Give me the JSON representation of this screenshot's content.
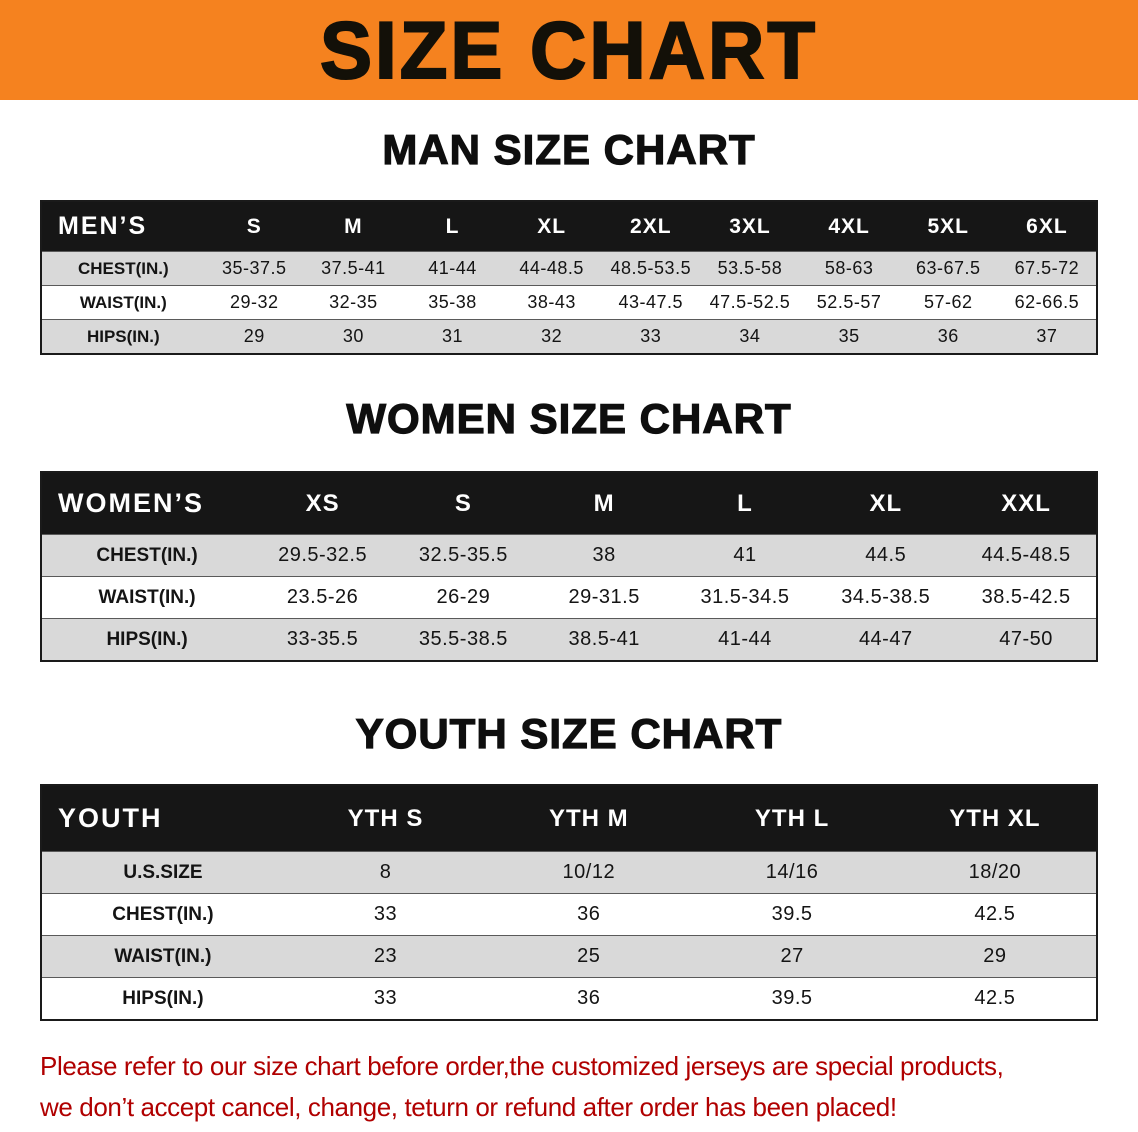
{
  "banner": {
    "title": "SIZE CHART"
  },
  "sections": [
    {
      "heading": "MAN SIZE CHART",
      "table": {
        "header": [
          "MEN’S",
          "S",
          "M",
          "L",
          "XL",
          "2XL",
          "3XL",
          "4XL",
          "5XL",
          "6XL"
        ],
        "rows": [
          {
            "label": "CHEST(IN.)",
            "values": [
              "35-37.5",
              "37.5-41",
              "41-44",
              "44-48.5",
              "48.5-53.5",
              "53.5-58",
              "58-63",
              "63-67.5",
              "67.5-72"
            ]
          },
          {
            "label": "WAIST(IN.)",
            "values": [
              "29-32",
              "32-35",
              "35-38",
              "38-43",
              "43-47.5",
              "47.5-52.5",
              "52.5-57",
              "57-62",
              "62-66.5"
            ]
          },
          {
            "label": "HIPS(IN.)",
            "values": [
              "29",
              "30",
              "31",
              "32",
              "33",
              "34",
              "35",
              "36",
              "37"
            ]
          }
        ]
      }
    },
    {
      "heading": "WOMEN SIZE CHART",
      "table": {
        "header": [
          "WOMEN’S",
          "XS",
          "S",
          "M",
          "L",
          "XL",
          "XXL"
        ],
        "rows": [
          {
            "label": "CHEST(IN.)",
            "values": [
              "29.5-32.5",
              "32.5-35.5",
              "38",
              "41",
              "44.5",
              "44.5-48.5"
            ]
          },
          {
            "label": "WAIST(IN.)",
            "values": [
              "23.5-26",
              "26-29",
              "29-31.5",
              "31.5-34.5",
              "34.5-38.5",
              "38.5-42.5"
            ]
          },
          {
            "label": "HIPS(IN.)",
            "values": [
              "33-35.5",
              "35.5-38.5",
              "38.5-41",
              "41-44",
              "44-47",
              "47-50"
            ]
          }
        ]
      }
    },
    {
      "heading": "YOUTH SIZE CHART",
      "table": {
        "header": [
          "YOUTH",
          "YTH S",
          "YTH M",
          "YTH L",
          "YTH XL"
        ],
        "rows": [
          {
            "label": "U.S.SIZE",
            "values": [
              "8",
              "10/12",
              "14/16",
              "18/20"
            ]
          },
          {
            "label": "CHEST(IN.)",
            "values": [
              "33",
              "36",
              "39.5",
              "42.5"
            ]
          },
          {
            "label": "WAIST(IN.)",
            "values": [
              "23",
              "25",
              "27",
              "29"
            ]
          },
          {
            "label": "HIPS(IN.)",
            "values": [
              "33",
              "36",
              "39.5",
              "42.5"
            ]
          }
        ]
      }
    }
  ],
  "footer": {
    "lines": [
      "Please refer to our size chart before order,the customized jerseys are special products,",
      "we don’t accept cancel, change, teturn or refund after order has been placed!"
    ]
  },
  "colors": {
    "banner_bg": "#F5821F",
    "header_bg": "#161616",
    "row_alt_bg": "#D9D9D9",
    "footer_text": "#B00000"
  }
}
